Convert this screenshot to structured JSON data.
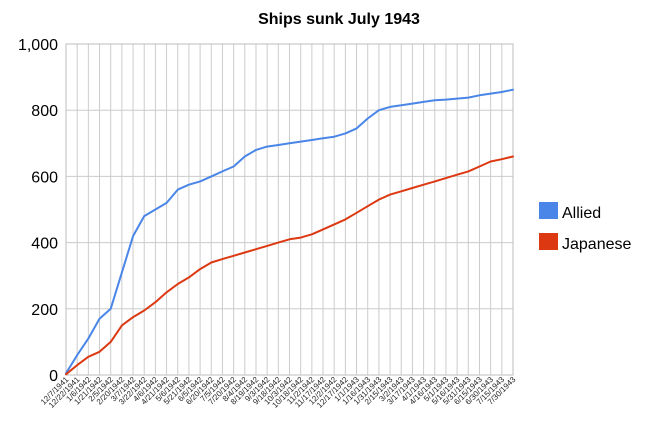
{
  "chart_data": {
    "type": "line",
    "title": "Ships sunk July 1943",
    "xlabel": "",
    "ylabel": "",
    "ylim": [
      0,
      1000
    ],
    "yticks": [
      "0",
      "200",
      "400",
      "600",
      "800",
      "1,000"
    ],
    "grid": true,
    "legend_position": "right",
    "x_tick_labels": [
      "12/7/1941",
      "12/22/1941",
      "1/6/1942",
      "1/21/1942",
      "2/5/1942",
      "2/20/1942",
      "3/7/1942",
      "3/22/1942",
      "4/6/1942",
      "4/21/1942",
      "5/6/1942",
      "5/21/1942",
      "6/5/1942",
      "6/20/1942",
      "7/5/1942",
      "7/20/1942",
      "8/4/1942",
      "8/19/1942",
      "9/3/1942",
      "9/18/1942",
      "10/3/1942",
      "10/18/1942",
      "11/2/1942",
      "11/17/1942",
      "12/2/1942",
      "12/17/1942",
      "1/1/1943",
      "1/16/1943",
      "1/31/1943",
      "2/15/1943",
      "3/2/1943",
      "3/17/1943",
      "4/1/1943",
      "4/16/1943",
      "5/1/1943",
      "5/16/1943",
      "5/31/1943",
      "6/15/1943",
      "6/30/1943",
      "7/15/1943",
      "7/30/1943"
    ],
    "series": [
      {
        "name": "Allied",
        "color": "#4a86e8",
        "values": [
          5,
          60,
          110,
          170,
          200,
          310,
          420,
          480,
          500,
          520,
          560,
          575,
          585,
          600,
          615,
          630,
          660,
          680,
          690,
          695,
          700,
          705,
          710,
          715,
          720,
          730,
          745,
          775,
          800,
          810,
          815,
          820,
          825,
          830,
          832,
          835,
          838,
          845,
          850,
          855,
          862
        ]
      },
      {
        "name": "Japanese",
        "color": "#dc3912",
        "values": [
          2,
          30,
          55,
          70,
          100,
          150,
          175,
          195,
          220,
          250,
          275,
          295,
          320,
          340,
          350,
          360,
          370,
          380,
          390,
          400,
          410,
          415,
          425,
          440,
          455,
          470,
          490,
          510,
          530,
          545,
          555,
          565,
          575,
          585,
          595,
          605,
          615,
          630,
          645,
          652,
          660
        ]
      }
    ]
  }
}
